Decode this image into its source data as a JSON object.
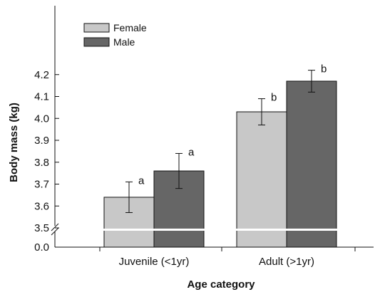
{
  "chart_data": {
    "type": "bar",
    "xlabel": "Age category",
    "ylabel": "Body mass (kg)",
    "categories": [
      "Juvenile (<1yr)",
      "Adult (>1yr)"
    ],
    "ylim": [
      3.5,
      4.25
    ],
    "axis_break": {
      "lower_tick": "0.0",
      "break_at": 3.5
    },
    "yticks": [
      3.5,
      3.6,
      3.7,
      3.8,
      3.9,
      4.0,
      4.1,
      4.2
    ],
    "ytick_labels": [
      "3.5",
      "3.6",
      "3.7",
      "3.8",
      "3.9",
      "4.0",
      "4.1",
      "4.2"
    ],
    "series": [
      {
        "name": "Female",
        "color": "#c8c8c8",
        "values": [
          3.64,
          4.03
        ],
        "errors": [
          0.07,
          0.06
        ],
        "sig_labels": [
          "a",
          "b"
        ]
      },
      {
        "name": "Male",
        "color": "#666666",
        "values": [
          3.76,
          4.17
        ],
        "errors": [
          0.08,
          0.05
        ],
        "sig_labels": [
          "a",
          "b"
        ]
      }
    ],
    "legend": {
      "position": "top-left"
    },
    "grid": false
  }
}
